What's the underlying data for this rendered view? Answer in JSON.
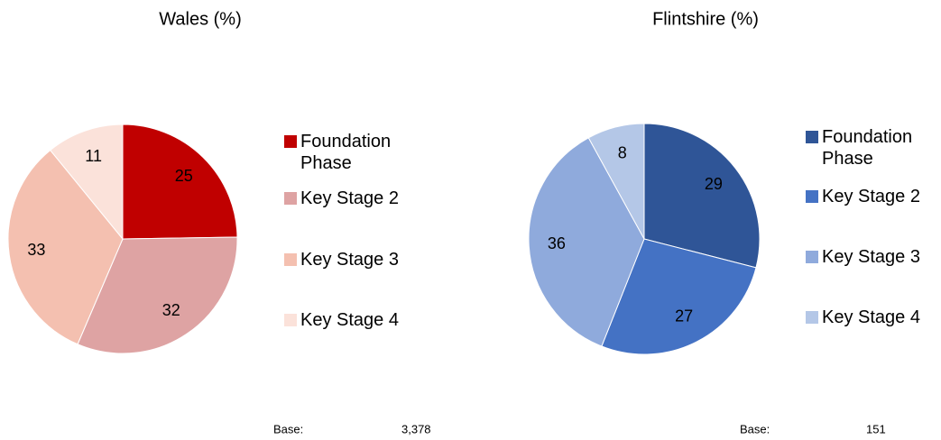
{
  "chart_data": [
    {
      "type": "pie",
      "title": "Wales (%)",
      "categories": [
        "Foundation Phase",
        "Key Stage 2",
        "Key Stage 3",
        "Key Stage 4"
      ],
      "values": [
        25,
        32,
        33,
        11
      ],
      "colors": [
        "#c00000",
        "#dea3a3",
        "#f4c0b0",
        "#fbe2da"
      ],
      "base_label": "Base:",
      "base_value": "3,378"
    },
    {
      "type": "pie",
      "title": "Flintshire (%)",
      "categories": [
        "Foundation Phase",
        "Key Stage 2",
        "Key Stage 3",
        "Key Stage 4"
      ],
      "values": [
        29,
        27,
        36,
        8
      ],
      "colors": [
        "#2f5597",
        "#4472c4",
        "#8faadc",
        "#b4c7e7"
      ],
      "base_label": "Base:",
      "base_value": "151"
    }
  ]
}
